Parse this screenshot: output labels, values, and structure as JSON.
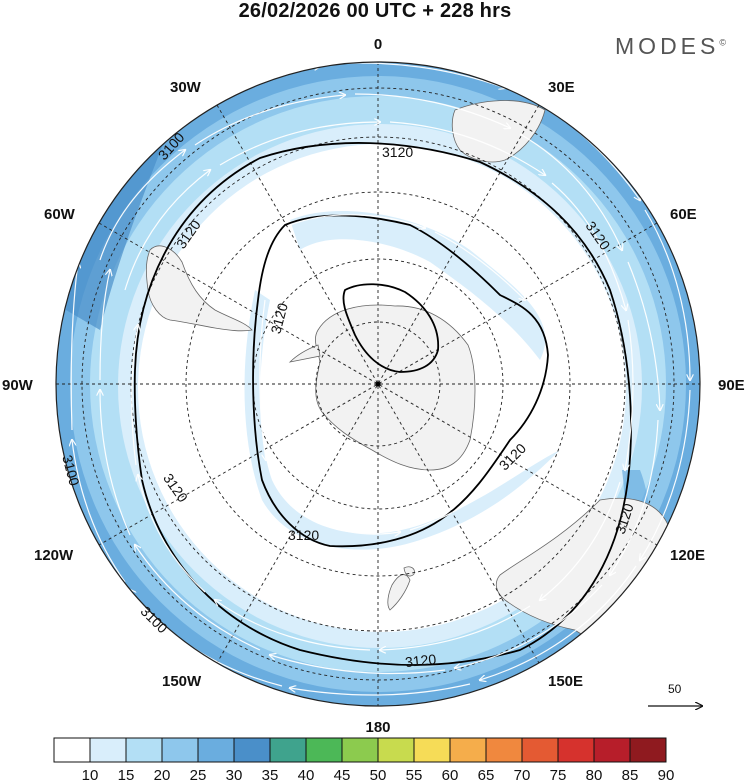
{
  "header": {
    "title": "26/02/2026  00 UTC  + 228 hrs",
    "brand": "MODES",
    "brand_mark": "©"
  },
  "map": {
    "projection": "south-polar-stereographic",
    "longitude_labels": [
      {
        "lon": "0",
        "text": "0"
      },
      {
        "lon": "30E",
        "text": "30E"
      },
      {
        "lon": "60E",
        "text": "60E"
      },
      {
        "lon": "90E",
        "text": "90E"
      },
      {
        "lon": "120E",
        "text": "120E"
      },
      {
        "lon": "150E",
        "text": "150E"
      },
      {
        "lon": "180",
        "text": "180"
      },
      {
        "lon": "150W",
        "text": "150W"
      },
      {
        "lon": "120W",
        "text": "120W"
      },
      {
        "lon": "90W",
        "text": "90W"
      },
      {
        "lon": "60W",
        "text": "60W"
      },
      {
        "lon": "30W",
        "text": "30W"
      }
    ],
    "contour_labels": [
      "3100",
      "3120"
    ],
    "wind_reference": {
      "value": "50"
    },
    "colors": {
      "land": "#f2f2f2",
      "ocean": "#ffffff",
      "contour": "#000000",
      "wind_arrows": "#ffffff"
    }
  },
  "colorbar": {
    "labels": [
      "10",
      "15",
      "20",
      "25",
      "30",
      "35",
      "40",
      "45",
      "50",
      "55",
      "60",
      "65",
      "70",
      "75",
      "80",
      "85",
      "90"
    ],
    "colors": [
      "#ffffff",
      "#d9eefb",
      "#b3dff5",
      "#8ec7ec",
      "#6aaddf",
      "#4a8fc9",
      "#3fa38d",
      "#4cb857",
      "#8ccb4e",
      "#c8db4e",
      "#f6dc57",
      "#f5ad4b",
      "#f0883e",
      "#e45a33",
      "#d6322d",
      "#b71e2a",
      "#8f1a1f"
    ]
  }
}
